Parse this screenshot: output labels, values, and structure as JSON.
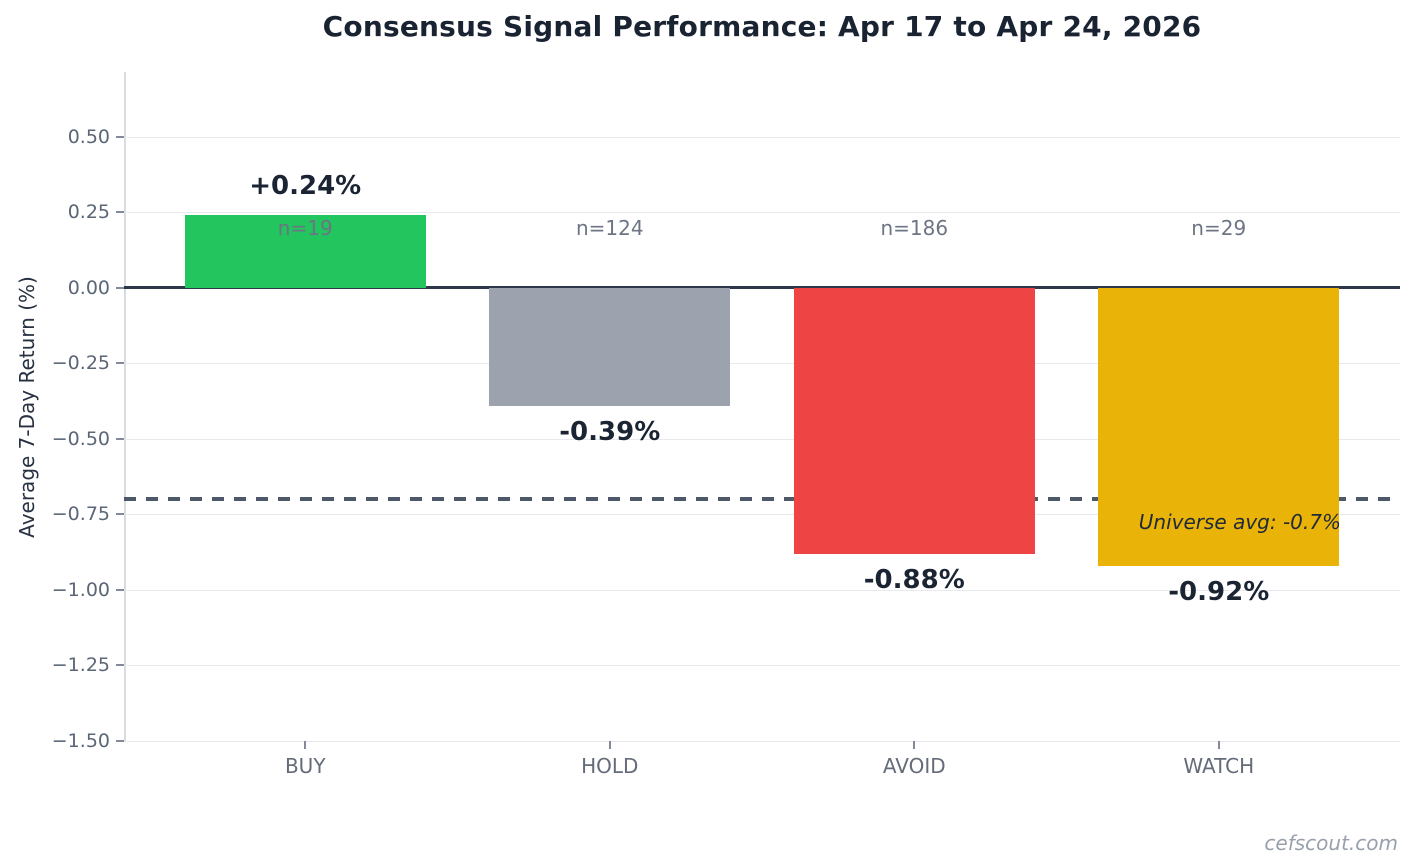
{
  "watermark": "cefscout.com",
  "chart_data": {
    "type": "bar",
    "title": "Consensus Signal Performance: Apr 17 to Apr 24, 2026",
    "xlabel": "",
    "ylabel": "Average 7-Day Return (%)",
    "categories": [
      "BUY",
      "HOLD",
      "AVOID",
      "WATCH"
    ],
    "values": [
      0.24,
      -0.39,
      -0.88,
      -0.92
    ],
    "value_labels": [
      "+0.24%",
      "-0.39%",
      "-0.88%",
      "-0.92%"
    ],
    "counts": [
      "n=19",
      "n=124",
      "n=186",
      "n=29"
    ],
    "bar_colors": [
      "#22c55e",
      "#9ca3af",
      "#ef4444",
      "#eab308"
    ],
    "yticks": [
      0.5,
      0.25,
      0,
      -0.25,
      -0.5,
      -0.75,
      -1.0,
      -1.25,
      -1.5
    ],
    "ytick_labels": [
      "0.50",
      "0.25",
      "0.00",
      "−0.25",
      "−0.50",
      "−0.75",
      "−1.00",
      "−1.25",
      "−1.50"
    ],
    "ylim": [
      -1.5,
      0.715
    ],
    "grid": true,
    "legend": null,
    "zero_line": true,
    "reference_line": {
      "value": -0.7,
      "style": "dashed",
      "label": "Universe avg: -0.7%"
    }
  }
}
